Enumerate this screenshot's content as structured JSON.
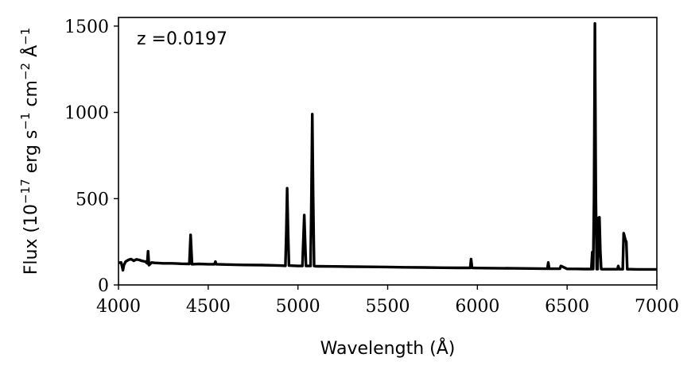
{
  "chart_data": {
    "type": "line",
    "title": "",
    "xlabel": "Wavelength (Å)",
    "ylabel_parts": [
      "Flux (10",
      "−17",
      " erg s",
      "−1",
      " cm",
      "−2",
      " Å",
      "−1"
    ],
    "annotation": "z =0.0197",
    "xlim": [
      4000,
      7000
    ],
    "ylim": [
      0,
      1550
    ],
    "xticks": [
      4000,
      4500,
      5000,
      5500,
      6000,
      6500,
      7000
    ],
    "yticks": [
      0,
      500,
      1000,
      1500
    ],
    "grid": false,
    "legend": "none",
    "line_color": "#000000",
    "series": [
      {
        "x": [
          4000,
          4015,
          4025,
          4030,
          4040,
          4055,
          4070,
          4085,
          4100,
          4115,
          4130,
          4150,
          4160,
          4165,
          4170,
          4185,
          4200,
          4250,
          4300,
          4350,
          4395,
          4402,
          4410,
          4450,
          4500,
          4535,
          4540,
          4545,
          4600,
          4700,
          4800,
          4900,
          4930,
          4935,
          4940,
          4945,
          4950,
          5000,
          5025,
          5030,
          5035,
          5040,
          5045,
          5070,
          5075,
          5080,
          5085,
          5090,
          5100,
          5200,
          5300,
          5400,
          5500,
          5600,
          5700,
          5800,
          5900,
          5960,
          5965,
          5970,
          6000,
          6100,
          6200,
          6300,
          6390,
          6395,
          6400,
          6450,
          6460,
          6465,
          6500,
          6550,
          6600,
          6635,
          6640,
          6645,
          6650,
          6655,
          6660,
          6665,
          6670,
          6675,
          6680,
          6685,
          6690,
          6695,
          6700,
          6750,
          6780,
          6785,
          6790,
          6800,
          6810,
          6815,
          6820,
          6825,
          6830,
          6835,
          6840,
          6845,
          6850,
          6900,
          6950,
          7000
        ],
        "y": [
          128,
          130,
          85,
          115,
          135,
          145,
          150,
          140,
          148,
          145,
          140,
          135,
          125,
          195,
          115,
          130,
          128,
          125,
          125,
          123,
          122,
          290,
          120,
          122,
          120,
          120,
          135,
          120,
          118,
          116,
          115,
          112,
          111,
          300,
          560,
          300,
          112,
          110,
          110,
          250,
          405,
          250,
          110,
          110,
          500,
          990,
          500,
          110,
          108,
          107,
          106,
          105,
          104,
          102,
          101,
          100,
          99,
          99,
          150,
          99,
          98,
          97,
          96,
          95,
          94,
          130,
          94,
          94,
          94,
          110,
          93,
          93,
          92,
          92,
          190,
          92,
          500,
          1515,
          500,
          92,
          92,
          390,
          392,
          200,
          92,
          91,
          91,
          91,
          91,
          110,
          91,
          91,
          91,
          300,
          280,
          260,
          250,
          91,
          91,
          91,
          91,
          90,
          90,
          90
        ]
      }
    ]
  }
}
